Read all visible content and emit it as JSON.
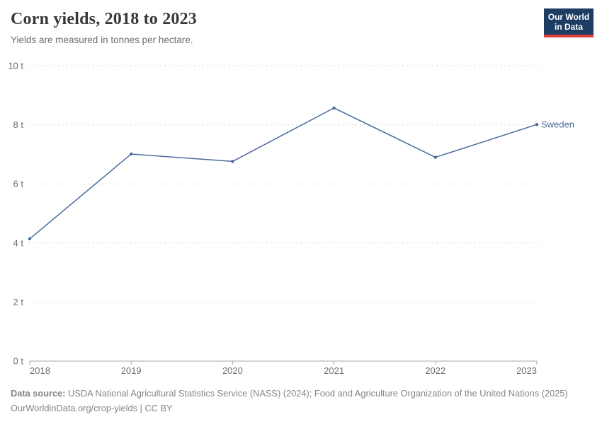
{
  "header": {
    "title": "Corn yields, 2018 to 2023",
    "subtitle": "Yields are measured in tonnes per hectare.",
    "logo": {
      "line1": "Our World",
      "line2": "in Data"
    }
  },
  "chart_data": {
    "type": "line",
    "title": "Corn yields, 2018 to 2023",
    "xlabel": "",
    "ylabel": "tonnes per hectare",
    "x": [
      2018,
      2019,
      2020,
      2021,
      2022,
      2023
    ],
    "x_labels": [
      "2018",
      "2019",
      "2020",
      "2021",
      "2022",
      "2023"
    ],
    "series": [
      {
        "name": "Sweden",
        "values": [
          4.14,
          7.01,
          6.76,
          8.57,
          6.9,
          8.01
        ],
        "color": "#4C6A9C"
      }
    ],
    "ylim": [
      0,
      10
    ],
    "yticks": [
      {
        "value": 0,
        "label": "0 t"
      },
      {
        "value": 2,
        "label": "2 t"
      },
      {
        "value": 4,
        "label": "4 t"
      },
      {
        "value": 6,
        "label": "6 t"
      },
      {
        "value": 8,
        "label": "8 t"
      },
      {
        "value": 10,
        "label": "10 t"
      }
    ],
    "grid": "horizontal-dashed",
    "legend": "end-of-line-label"
  },
  "footer": {
    "source_label": "Data source:",
    "source_text": "USDA National Agricultural Statistics Service (NASS) (2024); Food and Agriculture Organization of the United Nations (2025)",
    "license_line": "OurWorldinData.org/crop-yields | CC BY"
  },
  "colors": {
    "series_blue": "#4C6A9C",
    "gridline": "#dadada",
    "axis": "#a7a7a7",
    "tick_text": "#6e6e6e",
    "title_text": "#383838",
    "subtitle_text": "#6e6e6e",
    "footer_text": "#858585",
    "logo_bg": "#1d3d63",
    "logo_red": "#dc3f34"
  }
}
